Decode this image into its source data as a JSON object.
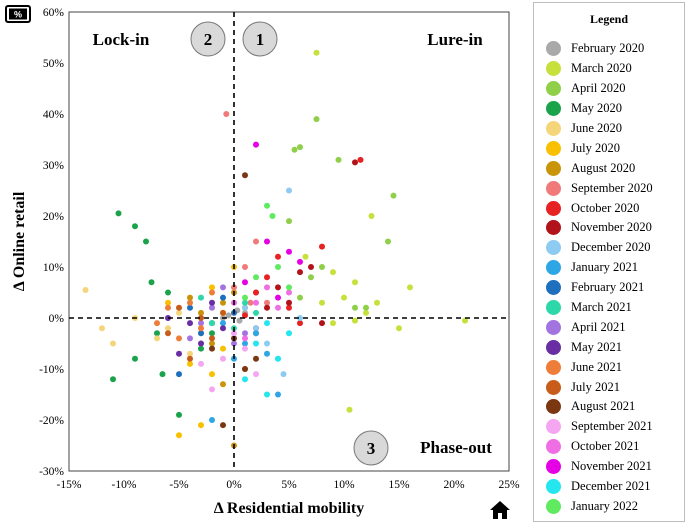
{
  "icons": {
    "top_left": "percent-badge-icon",
    "bottom_right": "home-icon"
  },
  "chart_data": {
    "type": "scatter",
    "title": "",
    "xlabel": "Δ Residential mobility",
    "ylabel": "Δ Online retail",
    "xlim": [
      -15,
      25
    ],
    "ylim": [
      -30,
      60
    ],
    "x_ticks": [
      "-15%",
      "-10%",
      "-5%",
      "0%",
      "5%",
      "10%",
      "15%",
      "20%",
      "25%"
    ],
    "y_ticks": [
      "-30%",
      "-20%",
      "-10%",
      "0%",
      "10%",
      "20%",
      "30%",
      "40%",
      "50%",
      "60%"
    ],
    "quadrant_labels": {
      "top_left": "Lock-in",
      "top_right": "Lure-in",
      "bottom_right": "Phase-out"
    },
    "quadrant_numbers": [
      "1",
      "2",
      "3"
    ],
    "reference_lines": {
      "x": 0,
      "y": 0,
      "style": "dashed"
    },
    "legend_title": "Legend",
    "legend_position": "right",
    "series": [
      {
        "name": "February 2020",
        "color": "#a9a9a9",
        "points": [
          [
            -0.5,
            0.5
          ],
          [
            0.5,
            -0.5
          ],
          [
            1,
            1
          ],
          [
            -1,
            0
          ],
          [
            0.3,
            1.5
          ]
        ]
      },
      {
        "name": "March 2020",
        "color": "#c8e03c",
        "points": [
          [
            7.5,
            52
          ],
          [
            12.5,
            20
          ],
          [
            15,
            -2
          ],
          [
            16,
            6
          ],
          [
            21,
            -0.5
          ],
          [
            10.5,
            -18
          ],
          [
            11,
            -0.5
          ],
          [
            9,
            9
          ],
          [
            8,
            3
          ],
          [
            12,
            1
          ],
          [
            13,
            3
          ],
          [
            10,
            4
          ],
          [
            9,
            -1
          ],
          [
            6.5,
            12
          ],
          [
            11,
            7
          ]
        ]
      },
      {
        "name": "April 2020",
        "color": "#8fcf4a",
        "points": [
          [
            7.5,
            39
          ],
          [
            5.5,
            33
          ],
          [
            6,
            33.5
          ],
          [
            9.5,
            31
          ],
          [
            14.5,
            24
          ],
          [
            14,
            15
          ],
          [
            12,
            2
          ],
          [
            11,
            2
          ],
          [
            7,
            8
          ],
          [
            6,
            4
          ],
          [
            8,
            10
          ],
          [
            5,
            19
          ]
        ]
      },
      {
        "name": "May 2020",
        "color": "#1aa34a",
        "points": [
          [
            -10.5,
            20.5
          ],
          [
            -9,
            18
          ],
          [
            -8,
            15
          ],
          [
            -7.5,
            7
          ],
          [
            -6,
            5
          ],
          [
            -7,
            -3
          ],
          [
            -9,
            -8
          ],
          [
            -11,
            -12
          ],
          [
            -6.5,
            -11
          ],
          [
            -5,
            -19
          ],
          [
            -3,
            -6
          ],
          [
            -2,
            -3
          ]
        ]
      },
      {
        "name": "June 2020",
        "color": "#f5d57a",
        "points": [
          [
            -13.5,
            5.5
          ],
          [
            -12,
            -2
          ],
          [
            -11,
            -5
          ],
          [
            -9,
            0
          ],
          [
            -6,
            -2
          ],
          [
            -4,
            -7
          ],
          [
            -3,
            -5
          ],
          [
            -5,
            1
          ],
          [
            -2,
            2
          ],
          [
            -7,
            -4
          ]
        ]
      },
      {
        "name": "July 2020",
        "color": "#f9c000",
        "points": [
          [
            -5,
            -23
          ],
          [
            -3,
            -21
          ],
          [
            -2,
            -11
          ],
          [
            -4,
            -9
          ],
          [
            -1,
            -6
          ],
          [
            -3,
            -3
          ],
          [
            -6,
            3
          ],
          [
            0,
            10
          ],
          [
            -2,
            6
          ],
          [
            -1,
            1
          ]
        ]
      },
      {
        "name": "August 2020",
        "color": "#c9940a",
        "points": [
          [
            0,
            -25
          ],
          [
            -1,
            -13
          ],
          [
            -2,
            -5
          ],
          [
            1,
            -10
          ],
          [
            -1,
            3
          ],
          [
            -3,
            1
          ],
          [
            1,
            2
          ],
          [
            0,
            5
          ],
          [
            -4,
            4
          ],
          [
            2,
            -3
          ]
        ]
      },
      {
        "name": "September 2020",
        "color": "#f07a7a",
        "points": [
          [
            -0.7,
            40
          ],
          [
            2,
            15
          ],
          [
            1,
            10
          ],
          [
            0,
            6
          ],
          [
            3,
            3
          ],
          [
            2,
            5
          ],
          [
            1.5,
            3
          ]
        ]
      },
      {
        "name": "October 2020",
        "color": "#e62222",
        "points": [
          [
            11.5,
            31
          ],
          [
            8,
            14
          ],
          [
            4,
            12
          ],
          [
            3,
            8
          ],
          [
            2,
            5
          ],
          [
            5,
            2
          ],
          [
            1,
            0.5
          ],
          [
            6,
            -1
          ]
        ]
      },
      {
        "name": "November 2020",
        "color": "#b2121a",
        "points": [
          [
            11,
            30.5
          ],
          [
            7,
            10
          ],
          [
            4,
            6
          ],
          [
            5,
            3
          ],
          [
            3,
            2
          ],
          [
            6,
            9
          ],
          [
            2,
            -2
          ],
          [
            8,
            -1
          ]
        ]
      },
      {
        "name": "December 2020",
        "color": "#8ecbf2",
        "points": [
          [
            5,
            25
          ],
          [
            4.5,
            -11
          ],
          [
            3,
            -5
          ],
          [
            2,
            -2
          ],
          [
            4,
            -8
          ],
          [
            1,
            2
          ],
          [
            6,
            0
          ]
        ]
      },
      {
        "name": "January 2021",
        "color": "#2ea6e6",
        "points": [
          [
            -2,
            -20
          ],
          [
            0,
            -8
          ],
          [
            1,
            -5
          ],
          [
            2,
            -3
          ],
          [
            3,
            -7
          ],
          [
            -1,
            -1
          ],
          [
            4,
            -15
          ]
        ]
      },
      {
        "name": "February 2021",
        "color": "#1f6fbf",
        "points": [
          [
            -5,
            -11
          ],
          [
            -3,
            -3
          ],
          [
            -2,
            -1
          ],
          [
            -4,
            2
          ],
          [
            -1,
            4
          ],
          [
            0,
            1
          ]
        ]
      },
      {
        "name": "March 2021",
        "color": "#2ed7a8",
        "points": [
          [
            -2,
            -1
          ],
          [
            -3,
            4
          ],
          [
            1,
            3
          ],
          [
            0,
            -2
          ],
          [
            2,
            1
          ]
        ]
      },
      {
        "name": "April 2021",
        "color": "#a374e0",
        "points": [
          [
            -3,
            -1
          ],
          [
            -2,
            2
          ],
          [
            -4,
            -4
          ],
          [
            1,
            -3
          ],
          [
            -1,
            6
          ],
          [
            0,
            -5
          ]
        ]
      },
      {
        "name": "May 2021",
        "color": "#6a2ea4",
        "points": [
          [
            -5,
            -7
          ],
          [
            -4,
            -1
          ],
          [
            -3,
            -5
          ],
          [
            -6,
            0
          ],
          [
            -2,
            3
          ],
          [
            -1,
            -2
          ]
        ]
      },
      {
        "name": "June 2021",
        "color": "#ee7d3a",
        "points": [
          [
            -5,
            -4
          ],
          [
            -4,
            3
          ],
          [
            -3,
            -2
          ],
          [
            -6,
            2
          ],
          [
            -2,
            5
          ],
          [
            -7,
            -1
          ]
        ]
      },
      {
        "name": "July 2021",
        "color": "#c85c1a",
        "points": [
          [
            -4,
            -8
          ],
          [
            -3,
            0
          ],
          [
            -5,
            2
          ],
          [
            -2,
            -4
          ],
          [
            -1,
            1
          ],
          [
            -6,
            -3
          ]
        ]
      },
      {
        "name": "August 2021",
        "color": "#7b3612",
        "points": [
          [
            1,
            -10
          ],
          [
            -1,
            -21
          ],
          [
            0,
            -4
          ],
          [
            2,
            -8
          ],
          [
            -2,
            -6
          ],
          [
            1,
            28
          ]
        ]
      },
      {
        "name": "September 2021",
        "color": "#f5a6f0",
        "points": [
          [
            -2,
            -14
          ],
          [
            -1,
            -8
          ],
          [
            0,
            -3
          ],
          [
            1,
            -6
          ],
          [
            2,
            -11
          ],
          [
            -3,
            -9
          ]
        ]
      },
      {
        "name": "October 2021",
        "color": "#ef6ee3",
        "points": [
          [
            2,
            3
          ],
          [
            3,
            6
          ],
          [
            1,
            -4
          ],
          [
            4,
            2
          ],
          [
            0,
            3
          ],
          [
            5,
            5
          ]
        ]
      },
      {
        "name": "November 2021",
        "color": "#e500e5",
        "points": [
          [
            2,
            34
          ],
          [
            3,
            15
          ],
          [
            5,
            13
          ],
          [
            1,
            7
          ],
          [
            4,
            4
          ],
          [
            6,
            11
          ]
        ]
      },
      {
        "name": "December 2021",
        "color": "#23e6ef",
        "points": [
          [
            3,
            -15
          ],
          [
            4,
            -8
          ],
          [
            2,
            -5
          ],
          [
            5,
            -3
          ],
          [
            1,
            -12
          ],
          [
            3,
            -1
          ]
        ]
      },
      {
        "name": "January 2022",
        "color": "#60ea60",
        "points": [
          [
            3.5,
            20
          ],
          [
            3,
            22
          ],
          [
            4,
            10
          ],
          [
            2,
            8
          ],
          [
            5,
            6
          ],
          [
            1,
            4
          ]
        ]
      }
    ]
  }
}
